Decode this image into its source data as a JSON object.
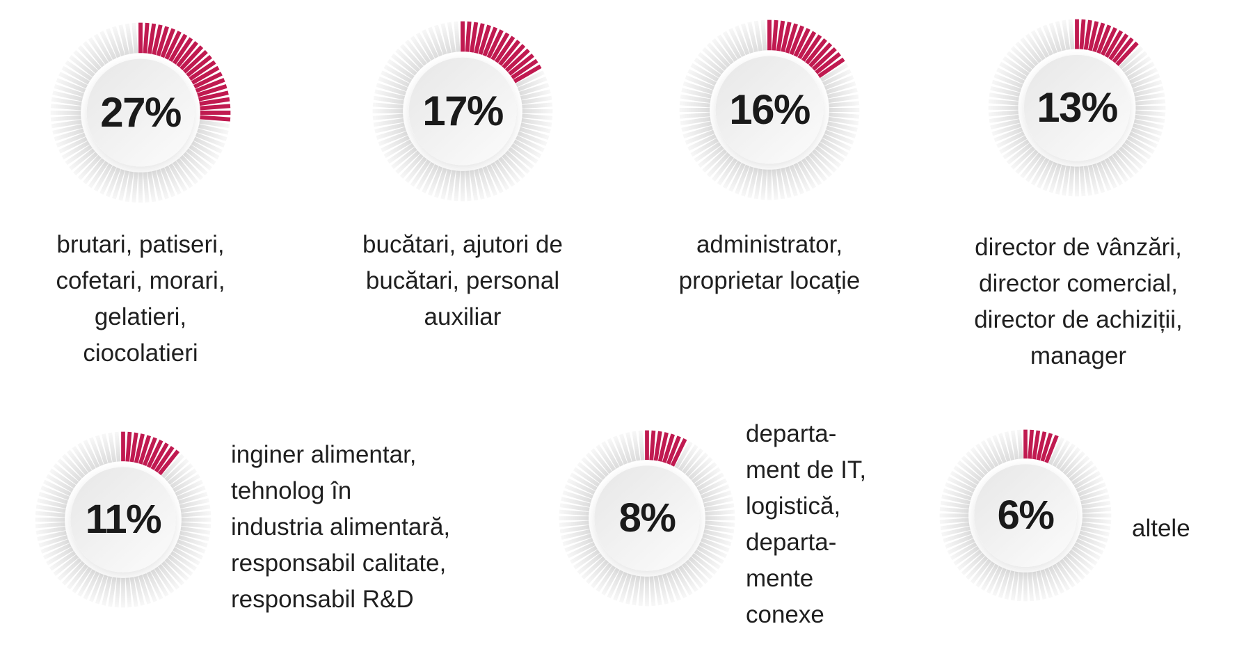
{
  "figure": {
    "background": "#ffffff",
    "accent_color": "#c01a50",
    "tick_gray_inner": "#d9d9d9",
    "tick_gray_outer": "#f8f8f8",
    "inner_circle_from": "#e7e7e7",
    "inner_circle_to": "#fbfbfb",
    "value_text_color": "#1a1a1a",
    "label_text_color": "#1f1f1f"
  },
  "gauge_style": {
    "tick_count": 84,
    "start_angle_deg": -90,
    "direction": "clockwise",
    "legend": "none",
    "grid": "off"
  },
  "chart_data": [
    {
      "type": "pie",
      "subtype": "tick-donut-gauge",
      "value": 27,
      "unit": "%",
      "value_label": "27%",
      "label": "brutari, patiseri, cofetari, morari, gelatieri, ciocolatieri",
      "label_lines": [
        "brutari, patiseri,",
        "cofetari, morari,",
        "gelatieri,",
        "ciocolatieri"
      ],
      "label_position": "below-center"
    },
    {
      "type": "pie",
      "subtype": "tick-donut-gauge",
      "value": 17,
      "unit": "%",
      "value_label": "17%",
      "label": "bucătari, ajutori de bucătari, personal auxiliar",
      "label_lines": [
        "bucătari, ajutori de",
        "bucătari, personal",
        "auxiliar"
      ],
      "label_position": "below-center"
    },
    {
      "type": "pie",
      "subtype": "tick-donut-gauge",
      "value": 16,
      "unit": "%",
      "value_label": "16%",
      "label": "administrator, proprietar locație",
      "label_lines": [
        "administrator,",
        "proprietar locație"
      ],
      "label_position": "below-center"
    },
    {
      "type": "pie",
      "subtype": "tick-donut-gauge",
      "value": 13,
      "unit": "%",
      "value_label": "13%",
      "label": "director de vânzări, director comercial, director de achiziții, manager",
      "label_lines": [
        "director de vânzări,",
        "director comercial,",
        "director de achiziții,",
        "manager"
      ],
      "label_position": "below-center"
    },
    {
      "type": "pie",
      "subtype": "tick-donut-gauge",
      "value": 11,
      "unit": "%",
      "value_label": "11%",
      "label": "inginer alimentar, tehnolog în industria alimentară, responsabil calitate, responsabil R&D",
      "label_lines": [
        "inginer alimentar,",
        "tehnolog în",
        "industria alimentară,",
        "responsabil calitate,",
        "responsabil R&D"
      ],
      "label_position": "right"
    },
    {
      "type": "pie",
      "subtype": "tick-donut-gauge",
      "value": 8,
      "unit": "%",
      "value_label": "8%",
      "label": "departament de IT, logistică, departamente conexe",
      "label_lines": [
        "departa-",
        "ment de IT,",
        "logistică,",
        "departa-",
        "mente",
        "conexe"
      ],
      "label_position": "right"
    },
    {
      "type": "pie",
      "subtype": "tick-donut-gauge",
      "value": 6,
      "unit": "%",
      "value_label": "6%",
      "label": "altele",
      "label_lines": [
        "altele"
      ],
      "label_position": "right"
    }
  ]
}
